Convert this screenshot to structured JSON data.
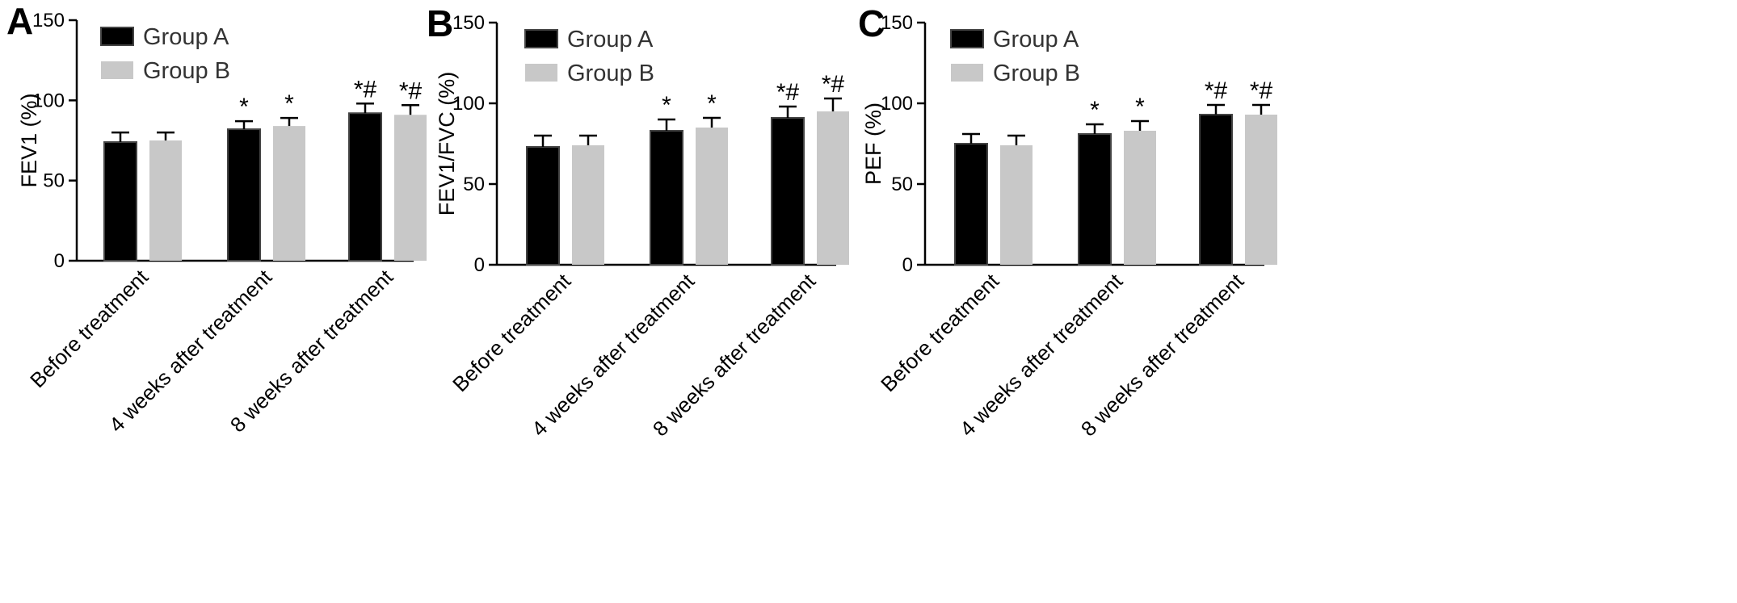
{
  "chart_data": [
    {
      "panel": "A",
      "type": "bar",
      "ylabel": "FEV1 (%)",
      "ylim": [
        0,
        150
      ],
      "yticks": [
        0,
        50,
        100,
        150
      ],
      "categories": [
        "Before treatment",
        "4 weeks after treatment",
        "8 weeks after treatment"
      ],
      "series": [
        {
          "name": "Group A",
          "color": "#000000",
          "values": [
            74,
            82,
            92
          ],
          "errors": [
            6,
            5,
            6
          ]
        },
        {
          "name": "Group B",
          "color": "#c8c8c8",
          "values": [
            75,
            84,
            91
          ],
          "errors": [
            5,
            5,
            6
          ]
        }
      ],
      "annotations": [
        [
          "",
          "*",
          "*#"
        ],
        [
          "",
          "*",
          "*#"
        ]
      ],
      "legend": "top-left",
      "grid": false
    },
    {
      "panel": "B",
      "type": "bar",
      "ylabel": "FEV1/FVC (%)",
      "ylim": [
        0,
        150
      ],
      "yticks": [
        0,
        50,
        100,
        150
      ],
      "categories": [
        "Before treatment",
        "4 weeks after treatment",
        "8 weeks after treatment"
      ],
      "series": [
        {
          "name": "Group A",
          "color": "#000000",
          "values": [
            73,
            83,
            91
          ],
          "errors": [
            7,
            7,
            7
          ]
        },
        {
          "name": "Group B",
          "color": "#c8c8c8",
          "values": [
            74,
            85,
            95
          ],
          "errors": [
            6,
            6,
            8
          ]
        }
      ],
      "annotations": [
        [
          "",
          "*",
          "*#"
        ],
        [
          "",
          "*",
          "*#"
        ]
      ],
      "legend": "top-left",
      "grid": false
    },
    {
      "panel": "C",
      "type": "bar",
      "ylabel": "PEF (%)",
      "ylim": [
        0,
        150
      ],
      "yticks": [
        0,
        50,
        100,
        150
      ],
      "categories": [
        "Before treatment",
        "4 weeks after treatment",
        "8 weeks after treatment"
      ],
      "series": [
        {
          "name": "Group A",
          "color": "#000000",
          "values": [
            75,
            81,
            93
          ],
          "errors": [
            6,
            6,
            6
          ]
        },
        {
          "name": "Group B",
          "color": "#c8c8c8",
          "values": [
            74,
            83,
            93
          ],
          "errors": [
            6,
            6,
            6
          ]
        }
      ],
      "annotations": [
        [
          "",
          "*",
          "*#"
        ],
        [
          "",
          "*",
          "*#"
        ]
      ],
      "legend": "top-left",
      "grid": false
    }
  ]
}
